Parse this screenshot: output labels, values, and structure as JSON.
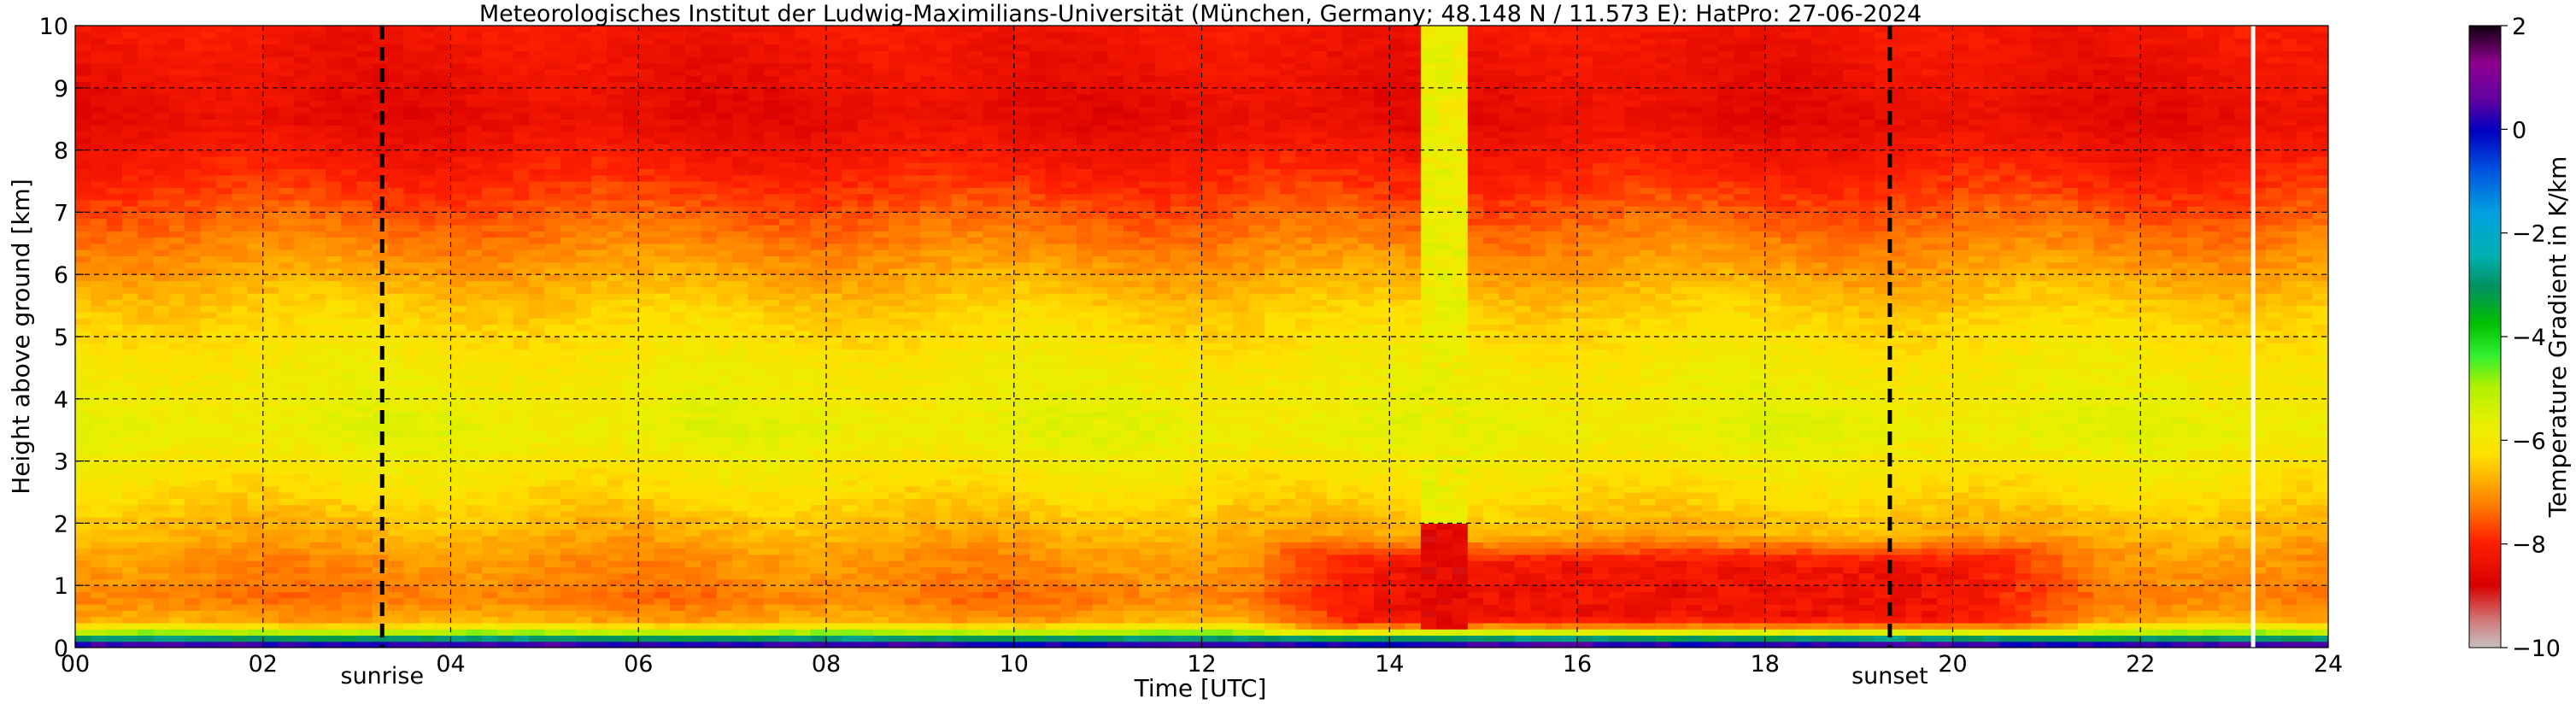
{
  "chart_data": {
    "type": "heatmap",
    "title": "Meteorologisches Institut der Ludwig-Maximilians-Universität (München, Germany; 48.148 N / 11.573 E):    HatPro: 27-06-2024",
    "xlabel": "Time [UTC]",
    "ylabel": "Height above ground [km]",
    "xlim": [
      0,
      24
    ],
    "ylim": [
      0,
      10
    ],
    "x_ticks": [
      "00",
      "02",
      "04",
      "06",
      "08",
      "10",
      "12",
      "14",
      "16",
      "18",
      "20",
      "22",
      "24"
    ],
    "y_ticks": [
      "0",
      "1",
      "2",
      "3",
      "4",
      "5",
      "6",
      "7",
      "8",
      "9",
      "10"
    ],
    "grid": true,
    "colorbar": {
      "label": "Temperature Gradient in K/km",
      "range": [
        -10,
        2
      ],
      "ticks": [
        "2",
        "0",
        "−2",
        "−4",
        "−6",
        "−8",
        "−10"
      ]
    },
    "vertical_markers": [
      {
        "label": "sunrise",
        "x": 3.27
      },
      {
        "label": "sunset",
        "x": 19.33
      }
    ],
    "data_gap_x": 23.2,
    "profile_mean": [
      {
        "height_km": 0.0,
        "gradient": 1.5
      },
      {
        "height_km": 0.08,
        "gradient": -0.5
      },
      {
        "height_km": 0.15,
        "gradient": -3.0
      },
      {
        "height_km": 0.25,
        "gradient": -5.0
      },
      {
        "height_km": 0.4,
        "gradient": -6.8
      },
      {
        "height_km": 0.8,
        "gradient": -7.3
      },
      {
        "height_km": 1.5,
        "gradient": -7.0
      },
      {
        "height_km": 2.5,
        "gradient": -6.3
      },
      {
        "height_km": 3.5,
        "gradient": -5.7
      },
      {
        "height_km": 4.5,
        "gradient": -6.0
      },
      {
        "height_km": 5.5,
        "gradient": -6.5
      },
      {
        "height_km": 6.5,
        "gradient": -7.2
      },
      {
        "height_km": 7.5,
        "gradient": -7.9
      },
      {
        "height_km": 8.5,
        "gradient": -8.5
      },
      {
        "height_km": 10.0,
        "gradient": -8.2
      }
    ],
    "afternoon_low_level_anomaly": {
      "time_range": [
        12.5,
        21.5
      ],
      "height_range_km": [
        0.2,
        1.8
      ],
      "gradient": -8.3
    },
    "convective_event": {
      "time_range": [
        14.3,
        14.9
      ],
      "gradient_band": -5.8
    }
  }
}
